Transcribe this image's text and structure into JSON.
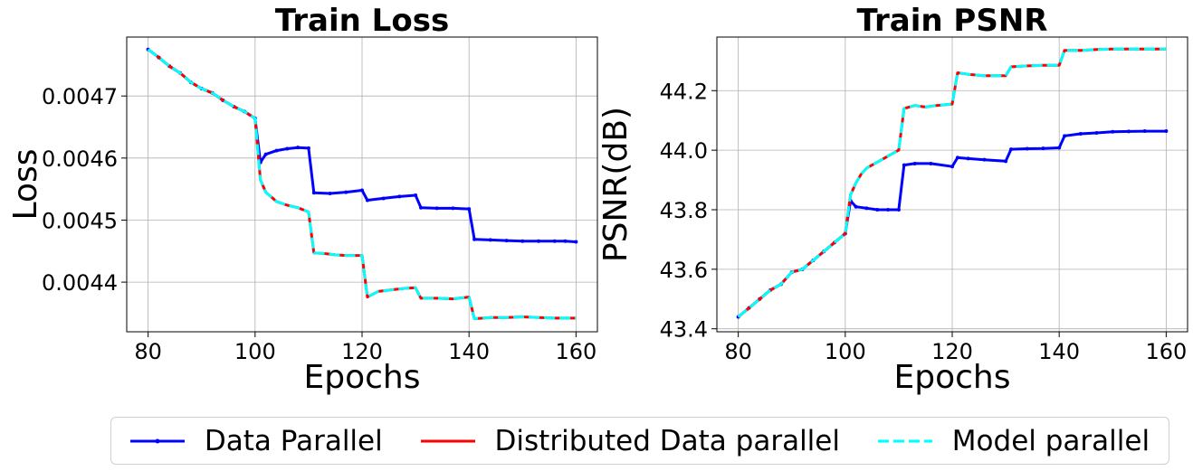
{
  "chart_data": [
    {
      "type": "line",
      "title": "Train Loss",
      "xlabel": "Epochs",
      "ylabel": "Loss",
      "xlim": [
        76,
        164
      ],
      "ylim": [
        0.00432,
        0.004795
      ],
      "xticks": [
        80,
        100,
        120,
        140,
        160
      ],
      "yticks": [
        0.0044,
        0.0045,
        0.0046,
        0.0047
      ],
      "ytick_labels": [
        "0.0044",
        "0.0045",
        "0.0046",
        "0.0047"
      ],
      "grid": true,
      "series": [
        {
          "name": "Data Parallel",
          "color": "#0000ff",
          "style": "solid-marker",
          "x": [
            80,
            82,
            84,
            86,
            88,
            90,
            92,
            94,
            96,
            98,
            100,
            101,
            102,
            104,
            106,
            108,
            110,
            111,
            114,
            117,
            120,
            121,
            124,
            127,
            130,
            131,
            134,
            137,
            140,
            141,
            144,
            147,
            150,
            153,
            156,
            158,
            160
          ],
          "y": [
            0.004775,
            0.004762,
            0.004748,
            0.004737,
            0.004722,
            0.004712,
            0.004705,
            0.004693,
            0.004683,
            0.004675,
            0.004664,
            0.004593,
            0.004606,
            0.004612,
            0.004615,
            0.004617,
            0.004616,
            0.004544,
            0.004543,
            0.004545,
            0.004548,
            0.004532,
            0.004535,
            0.004538,
            0.00454,
            0.00452,
            0.004519,
            0.004519,
            0.004518,
            0.004469,
            0.004468,
            0.004467,
            0.004466,
            0.004466,
            0.004466,
            0.004466,
            0.004465
          ]
        },
        {
          "name": "Distributed Data parallel",
          "color": "#ff0000",
          "style": "solid",
          "x": [
            80,
            82,
            84,
            86,
            88,
            90,
            92,
            94,
            96,
            98,
            100,
            101,
            102,
            104,
            106,
            108,
            110,
            111,
            113,
            115,
            117,
            120,
            121,
            123,
            126,
            128,
            130,
            131,
            134,
            137,
            140,
            141,
            144,
            147,
            150,
            153,
            156,
            158,
            160
          ],
          "y": [
            0.004775,
            0.004762,
            0.004748,
            0.004737,
            0.004722,
            0.004712,
            0.004705,
            0.004693,
            0.004683,
            0.004675,
            0.004664,
            0.004565,
            0.004545,
            0.00453,
            0.004524,
            0.00452,
            0.004513,
            0.004447,
            0.004446,
            0.004444,
            0.004443,
            0.004443,
            0.004376,
            0.004385,
            0.004388,
            0.00439,
            0.004391,
            0.004374,
            0.004374,
            0.004373,
            0.004376,
            0.004341,
            0.004343,
            0.004343,
            0.004344,
            0.004343,
            0.004342,
            0.004342,
            0.004342
          ]
        },
        {
          "name": "Model parallel",
          "color": "#00ffff",
          "style": "dashed",
          "x": [
            80,
            82,
            84,
            86,
            88,
            90,
            92,
            94,
            96,
            98,
            100,
            101,
            102,
            104,
            106,
            108,
            110,
            111,
            113,
            115,
            117,
            120,
            121,
            123,
            126,
            128,
            130,
            131,
            134,
            137,
            140,
            141,
            144,
            147,
            150,
            153,
            156,
            158,
            160
          ],
          "y": [
            0.004775,
            0.004762,
            0.004748,
            0.004737,
            0.004722,
            0.004712,
            0.004705,
            0.004693,
            0.004683,
            0.004675,
            0.004664,
            0.004565,
            0.004545,
            0.00453,
            0.004524,
            0.00452,
            0.004513,
            0.004447,
            0.004446,
            0.004444,
            0.004443,
            0.004443,
            0.004376,
            0.004385,
            0.004388,
            0.00439,
            0.004391,
            0.004374,
            0.004374,
            0.004373,
            0.004376,
            0.004341,
            0.004343,
            0.004343,
            0.004344,
            0.004343,
            0.004342,
            0.004342,
            0.004342
          ]
        }
      ]
    },
    {
      "type": "line",
      "title": "Train PSNR",
      "xlabel": "Epochs",
      "ylabel": "PSNR(dB)",
      "xlim": [
        76,
        164
      ],
      "ylim": [
        43.39,
        44.38
      ],
      "xticks": [
        80,
        100,
        120,
        140,
        160
      ],
      "yticks": [
        43.4,
        43.6,
        43.8,
        44.0,
        44.2
      ],
      "ytick_labels": [
        "43.4",
        "43.6",
        "43.8",
        "44.0",
        "44.2"
      ],
      "grid": true,
      "series": [
        {
          "name": "Data Parallel",
          "color": "#0000ff",
          "style": "solid-marker",
          "x": [
            80,
            82,
            84,
            86,
            88,
            90,
            92,
            94,
            96,
            98,
            100,
            101,
            102,
            104,
            106,
            108,
            110,
            111,
            113,
            116,
            120,
            121,
            123,
            126,
            130,
            131,
            134,
            137,
            140,
            141,
            144,
            147,
            150,
            153,
            156,
            160
          ],
          "y": [
            43.44,
            43.47,
            43.5,
            43.53,
            43.55,
            43.59,
            43.6,
            43.63,
            43.66,
            43.69,
            43.72,
            43.83,
            43.81,
            43.805,
            43.8,
            43.8,
            43.8,
            43.95,
            43.955,
            43.955,
            43.945,
            43.975,
            43.972,
            43.968,
            43.963,
            44.003,
            44.005,
            44.006,
            44.008,
            44.048,
            44.055,
            44.058,
            44.062,
            44.063,
            44.064,
            44.064
          ]
        },
        {
          "name": "Distributed Data parallel",
          "color": "#ff0000",
          "style": "solid",
          "x": [
            80,
            82,
            84,
            86,
            88,
            90,
            92,
            94,
            96,
            98,
            100,
            101,
            102,
            103,
            104,
            106,
            108,
            110,
            111,
            113,
            115,
            117,
            120,
            121,
            123,
            126,
            130,
            131,
            134,
            137,
            140,
            141,
            144,
            147,
            150,
            153,
            156,
            160
          ],
          "y": [
            43.44,
            43.47,
            43.5,
            43.53,
            43.55,
            43.59,
            43.6,
            43.63,
            43.66,
            43.69,
            43.72,
            43.85,
            43.89,
            43.92,
            43.94,
            43.96,
            43.98,
            44.0,
            44.14,
            44.15,
            44.145,
            44.15,
            44.155,
            44.26,
            44.255,
            44.25,
            44.25,
            44.28,
            44.283,
            44.285,
            44.285,
            44.335,
            44.335,
            44.338,
            44.34,
            44.34,
            44.34,
            44.34
          ]
        },
        {
          "name": "Model parallel",
          "color": "#00ffff",
          "style": "dashed",
          "x": [
            80,
            82,
            84,
            86,
            88,
            90,
            92,
            94,
            96,
            98,
            100,
            101,
            102,
            103,
            104,
            106,
            108,
            110,
            111,
            113,
            115,
            117,
            120,
            121,
            123,
            126,
            130,
            131,
            134,
            137,
            140,
            141,
            144,
            147,
            150,
            153,
            156,
            160
          ],
          "y": [
            43.44,
            43.47,
            43.5,
            43.53,
            43.55,
            43.59,
            43.6,
            43.63,
            43.66,
            43.69,
            43.72,
            43.85,
            43.89,
            43.92,
            43.94,
            43.96,
            43.98,
            44.0,
            44.14,
            44.15,
            44.145,
            44.15,
            44.155,
            44.26,
            44.255,
            44.25,
            44.25,
            44.28,
            44.283,
            44.285,
            44.285,
            44.335,
            44.335,
            44.338,
            44.34,
            44.34,
            44.34,
            44.34
          ]
        }
      ]
    }
  ],
  "legend": {
    "items": [
      {
        "label": "Data Parallel",
        "color": "#0000ff",
        "style": "solid-marker"
      },
      {
        "label": "Distributed Data parallel",
        "color": "#ff0000",
        "style": "solid"
      },
      {
        "label": "Model parallel",
        "color": "#00ffff",
        "style": "dashed"
      }
    ]
  }
}
